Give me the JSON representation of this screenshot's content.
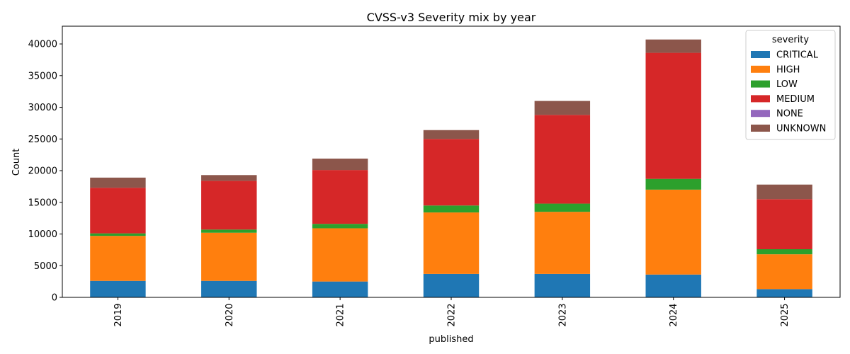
{
  "chart_data": {
    "type": "bar",
    "stacked": true,
    "title": "CVSS-v3 Severity mix by year",
    "xlabel": "published",
    "ylabel": "Count",
    "categories": [
      "2019",
      "2020",
      "2021",
      "2022",
      "2023",
      "2024",
      "2025"
    ],
    "ylim": [
      0,
      42800
    ],
    "yticks": [
      0,
      5000,
      10000,
      15000,
      20000,
      25000,
      30000,
      35000,
      40000
    ],
    "ytick_labels": [
      "0",
      "5000",
      "10000",
      "15000",
      "20000",
      "25000",
      "30000",
      "35000",
      "40000"
    ],
    "grid": false,
    "legend": {
      "title": "severity",
      "placement": "top-right"
    },
    "series": [
      {
        "name": "CRITICAL",
        "color": "#1f77b4",
        "values": [
          2600,
          2600,
          2500,
          3700,
          3700,
          3600,
          1300
        ]
      },
      {
        "name": "HIGH",
        "color": "#ff7f0e",
        "values": [
          7100,
          7600,
          8400,
          9700,
          9800,
          13400,
          5500
        ]
      },
      {
        "name": "LOW",
        "color": "#2ca02c",
        "values": [
          400,
          500,
          700,
          1100,
          1300,
          1700,
          800
        ]
      },
      {
        "name": "MEDIUM",
        "color": "#d62728",
        "values": [
          7200,
          7700,
          8500,
          10500,
          14000,
          19900,
          7900
        ]
      },
      {
        "name": "NONE",
        "color": "#9467bd",
        "values": [
          0,
          0,
          0,
          0,
          0,
          0,
          0
        ]
      },
      {
        "name": "UNKNOWN",
        "color": "#8c564b",
        "values": [
          1600,
          900,
          1800,
          1400,
          2200,
          2100,
          2300
        ]
      }
    ]
  }
}
